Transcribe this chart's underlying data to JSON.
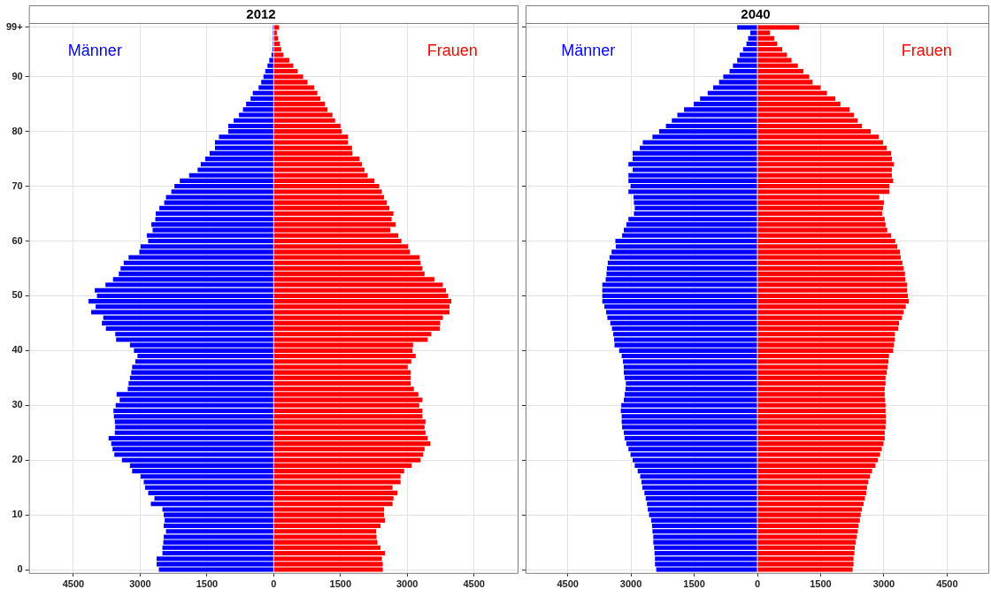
{
  "chart_data": [
    {
      "type": "bar",
      "title": "2012",
      "orientation": "horizontal",
      "stacked": true,
      "grid": true,
      "legend": false,
      "x": [
        99,
        98,
        97,
        96,
        95,
        94,
        93,
        92,
        91,
        90,
        89,
        88,
        87,
        86,
        85,
        84,
        83,
        82,
        81,
        80,
        79,
        78,
        77,
        76,
        75,
        74,
        73,
        72,
        71,
        70,
        69,
        68,
        67,
        66,
        65,
        64,
        63,
        62,
        61,
        60,
        59,
        58,
        57,
        56,
        55,
        54,
        53,
        52,
        51,
        50,
        49,
        48,
        47,
        46,
        45,
        44,
        43,
        42,
        41,
        40,
        39,
        38,
        37,
        36,
        35,
        34,
        33,
        32,
        31,
        30,
        29,
        28,
        27,
        26,
        25,
        24,
        23,
        22,
        21,
        20,
        19,
        18,
        17,
        16,
        15,
        14,
        13,
        12,
        11,
        10,
        9,
        8,
        7,
        6,
        5,
        4,
        3,
        2,
        1,
        0
      ],
      "ylim": [
        -0.6,
        99.8
      ],
      "yticks": [
        0,
        10,
        20,
        30,
        40,
        50,
        60,
        70,
        80,
        90,
        {
          "value": 99,
          "label": "99+"
        }
      ],
      "xlim": [
        -5500,
        5500
      ],
      "xticks": [
        {
          "value": -4500,
          "label": "4500"
        },
        {
          "value": -3000,
          "label": "3000"
        },
        {
          "value": -1500,
          "label": "1500"
        },
        0,
        1500,
        3000,
        4500
      ],
      "series": [
        {
          "name": "Männer",
          "color": "#0000ff",
          "values": [
            -20,
            -20,
            -20,
            -20,
            -30,
            -50,
            -100,
            -140,
            -190,
            -230,
            -280,
            -340,
            -470,
            -520,
            -620,
            -690,
            -780,
            -900,
            -1020,
            -1020,
            -1230,
            -1320,
            -1320,
            -1440,
            -1540,
            -1640,
            -1710,
            -1900,
            -2110,
            -2230,
            -2300,
            -2420,
            -2460,
            -2570,
            -2650,
            -2660,
            -2750,
            -2720,
            -2850,
            -2820,
            -2990,
            -3020,
            -3260,
            -3370,
            -3440,
            -3480,
            -3610,
            -3780,
            -4020,
            -3970,
            -4160,
            -4000,
            -4100,
            -3830,
            -3860,
            -3770,
            -3560,
            -3540,
            -3230,
            -3140,
            -3060,
            -3110,
            -3180,
            -3200,
            -3230,
            -3260,
            -3280,
            -3530,
            -3460,
            -3550,
            -3600,
            -3590,
            -3570,
            -3560,
            -3570,
            -3710,
            -3650,
            -3620,
            -3580,
            -3410,
            -3230,
            -3180,
            -2990,
            -2920,
            -2890,
            -2820,
            -2680,
            -2760,
            -2500,
            -2470,
            -2450,
            -2470,
            -2420,
            -2470,
            -2480,
            -2500,
            -2500,
            -2630,
            -2630,
            -2580
          ]
        },
        {
          "name": "Frauen",
          "color": "#ff0000",
          "values": [
            120,
            70,
            100,
            140,
            170,
            220,
            350,
            440,
            540,
            660,
            760,
            910,
            980,
            1050,
            1150,
            1210,
            1320,
            1380,
            1500,
            1530,
            1670,
            1670,
            1760,
            1770,
            1930,
            1980,
            2040,
            2110,
            2260,
            2370,
            2430,
            2480,
            2540,
            2600,
            2690,
            2650,
            2740,
            2620,
            2800,
            2870,
            3020,
            3060,
            3280,
            3300,
            3340,
            3390,
            3610,
            3800,
            3870,
            3920,
            3990,
            3950,
            3950,
            3800,
            3740,
            3730,
            3540,
            3460,
            3130,
            3120,
            3190,
            3090,
            3010,
            3080,
            3080,
            3080,
            3150,
            3250,
            3340,
            3270,
            3340,
            3340,
            3410,
            3390,
            3410,
            3460,
            3520,
            3390,
            3360,
            3300,
            3100,
            2930,
            2850,
            2850,
            2670,
            2780,
            2690,
            2670,
            2480,
            2480,
            2500,
            2400,
            2300,
            2310,
            2330,
            2400,
            2500,
            2430,
            2450,
            2450
          ]
        }
      ]
    },
    {
      "type": "bar",
      "title": "2040",
      "orientation": "horizontal",
      "stacked": true,
      "grid": true,
      "legend": false,
      "tick_labels": "x",
      "x": [
        99,
        98,
        97,
        96,
        95,
        94,
        93,
        92,
        91,
        90,
        89,
        88,
        87,
        86,
        85,
        84,
        83,
        82,
        81,
        80,
        79,
        78,
        77,
        76,
        75,
        74,
        73,
        72,
        71,
        70,
        69,
        68,
        67,
        66,
        65,
        64,
        63,
        62,
        61,
        60,
        59,
        58,
        57,
        56,
        55,
        54,
        53,
        52,
        51,
        50,
        49,
        48,
        47,
        46,
        45,
        44,
        43,
        42,
        41,
        40,
        39,
        38,
        37,
        36,
        35,
        34,
        33,
        32,
        31,
        30,
        29,
        28,
        27,
        26,
        25,
        24,
        23,
        22,
        21,
        20,
        19,
        18,
        17,
        16,
        15,
        14,
        13,
        12,
        11,
        10,
        9,
        8,
        7,
        6,
        5,
        4,
        3,
        2,
        1,
        0
      ],
      "ylim": [
        -0.6,
        99.8
      ],
      "yticks": [
        0,
        10,
        20,
        30,
        40,
        50,
        60,
        70,
        80,
        90,
        {
          "value": 99,
          "label": null
        }
      ],
      "xlim": [
        -5500,
        5500
      ],
      "xticks": [
        {
          "value": -4500,
          "label": "4500"
        },
        {
          "value": -3000,
          "label": "3000"
        },
        {
          "value": -1500,
          "label": "1500"
        },
        0,
        1500,
        3000,
        4500
      ],
      "series": [
        {
          "name": "Männer",
          "color": "#0000ff",
          "values": [
            -480,
            -170,
            -220,
            -260,
            -340,
            -420,
            -480,
            -580,
            -660,
            -810,
            -910,
            -1050,
            -1180,
            -1360,
            -1510,
            -1740,
            -1900,
            -2030,
            -2170,
            -2330,
            -2490,
            -2720,
            -2790,
            -2960,
            -2960,
            -3060,
            -2960,
            -3060,
            -3060,
            -3010,
            -3060,
            -2940,
            -2930,
            -2910,
            -2930,
            -3060,
            -3110,
            -3170,
            -3210,
            -3370,
            -3360,
            -3460,
            -3510,
            -3550,
            -3570,
            -3580,
            -3600,
            -3680,
            -3680,
            -3680,
            -3680,
            -3630,
            -3590,
            -3560,
            -3490,
            -3450,
            -3420,
            -3400,
            -3390,
            -3280,
            -3220,
            -3190,
            -3170,
            -3170,
            -3150,
            -3120,
            -3130,
            -3150,
            -3170,
            -3230,
            -3240,
            -3220,
            -3220,
            -3210,
            -3170,
            -3150,
            -3110,
            -3060,
            -3010,
            -2960,
            -2910,
            -2840,
            -2780,
            -2750,
            -2730,
            -2680,
            -2650,
            -2620,
            -2600,
            -2570,
            -2520,
            -2500,
            -2490,
            -2470,
            -2470,
            -2450,
            -2440,
            -2430,
            -2430,
            -2400
          ]
        },
        {
          "name": "Frauen",
          "color": "#ff0000",
          "values": [
            990,
            300,
            400,
            470,
            590,
            700,
            810,
            960,
            1090,
            1230,
            1310,
            1500,
            1650,
            1850,
            1970,
            2190,
            2290,
            2380,
            2480,
            2690,
            2880,
            2980,
            3070,
            3170,
            3190,
            3240,
            3190,
            3190,
            3220,
            3130,
            3130,
            2890,
            3000,
            2980,
            2960,
            3020,
            3040,
            3080,
            3170,
            3270,
            3320,
            3380,
            3400,
            3440,
            3470,
            3500,
            3510,
            3550,
            3550,
            3570,
            3590,
            3520,
            3470,
            3430,
            3360,
            3340,
            3260,
            3260,
            3240,
            3220,
            3120,
            3110,
            3090,
            3070,
            3040,
            3040,
            3020,
            3020,
            3030,
            3040,
            3040,
            3050,
            3050,
            3040,
            3020,
            3020,
            2990,
            2950,
            2910,
            2860,
            2800,
            2720,
            2670,
            2630,
            2600,
            2580,
            2550,
            2520,
            2480,
            2450,
            2430,
            2400,
            2380,
            2360,
            2330,
            2310,
            2300,
            2280,
            2280,
            2260
          ]
        }
      ]
    }
  ]
}
